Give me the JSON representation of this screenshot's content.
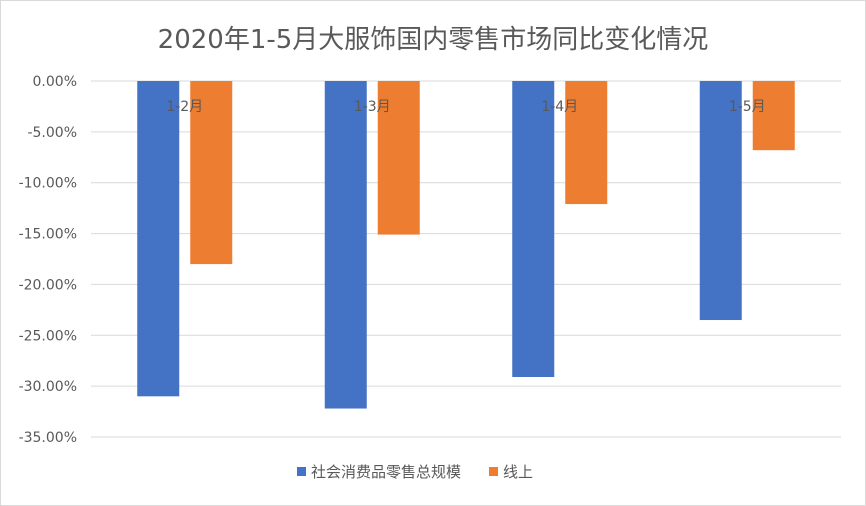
{
  "chart_data": {
    "type": "bar",
    "title": "2020年1-5月大服饰国内零售市场同比变化情况",
    "categories": [
      "1-2月",
      "1-3月",
      "1-4月",
      "1-5月"
    ],
    "series": [
      {
        "name": "社会消费品零售总规模",
        "color": "#4472C4",
        "values": [
          -31.0,
          -32.2,
          -29.1,
          -23.5
        ]
      },
      {
        "name": "线上",
        "color": "#ED7D31",
        "values": [
          -18.0,
          -15.1,
          -12.1,
          -6.8
        ]
      }
    ],
    "ylim": [
      -35,
      0
    ],
    "yticks": [
      0,
      -5,
      -10,
      -15,
      -20,
      -25,
      -30,
      -35
    ],
    "ytick_labels": [
      "0.00%",
      "-5.00%",
      "-10.00%",
      "-15.00%",
      "-20.00%",
      "-25.00%",
      "-30.00%",
      "-35.00%"
    ],
    "grid": true,
    "legend": "bottom",
    "xlabel": "",
    "ylabel": ""
  }
}
